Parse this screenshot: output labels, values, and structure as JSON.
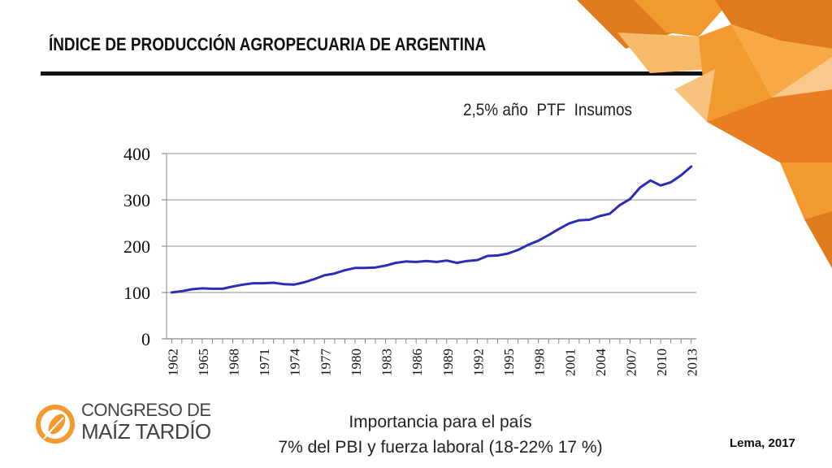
{
  "slide": {
    "title": "ÍNDICE DE PRODUCCIÓN AGROPECUARIA DE ARGENTINA",
    "annotation": "2,5% año  PTF  Insumos",
    "footer_line1": "Importancia para el país",
    "footer_line2": "7% del PBI y fuerza laboral (18-22% 17 %)",
    "source": "Lema, 2017",
    "logo_line1": "CONGRESO DE",
    "logo_line2": "MAÍZ TARDÍO"
  },
  "colors": {
    "line": "#2B2EB5",
    "accent_dark": "#E07A1F",
    "accent_mid": "#F39A2E",
    "accent_light": "#F7B96A",
    "grid": "#A6A6A6"
  },
  "chart_data": {
    "type": "line",
    "title": "",
    "xlabel": "",
    "ylabel": "",
    "ylim": [
      0,
      400
    ],
    "yticks": [
      0,
      100,
      200,
      300,
      400
    ],
    "xtick_labels": [
      "1962",
      "1965",
      "1968",
      "1971",
      "1974",
      "1977",
      "1980",
      "1983",
      "1986",
      "1989",
      "1992",
      "1995",
      "1998",
      "2001",
      "2004",
      "2007",
      "2010",
      "2013"
    ],
    "grid": true,
    "legend": "none",
    "series": [
      {
        "x": [
          1962,
          1963,
          1964,
          1965,
          1966,
          1967,
          1968,
          1969,
          1970,
          1971,
          1972,
          1973,
          1974,
          1975,
          1976,
          1977,
          1978,
          1979,
          1980,
          1981,
          1982,
          1983,
          1984,
          1985,
          1986,
          1987,
          1988,
          1989,
          1990,
          1991,
          1992,
          1993,
          1994,
          1995,
          1996,
          1997,
          1998,
          1999,
          2000,
          2001,
          2002,
          2003,
          2004,
          2005,
          2006,
          2007,
          2008,
          2009,
          2010,
          2011,
          2012,
          2013
        ],
        "values": [
          100,
          103,
          107,
          109,
          108,
          108,
          113,
          117,
          120,
          120,
          121,
          118,
          117,
          122,
          129,
          137,
          141,
          148,
          153,
          153,
          154,
          158,
          164,
          167,
          166,
          168,
          166,
          169,
          164,
          168,
          170,
          179,
          180,
          184,
          192,
          203,
          212,
          224,
          237,
          249,
          256,
          257,
          265,
          270,
          289,
          302,
          327,
          342,
          331,
          338,
          353,
          372
        ]
      }
    ]
  }
}
